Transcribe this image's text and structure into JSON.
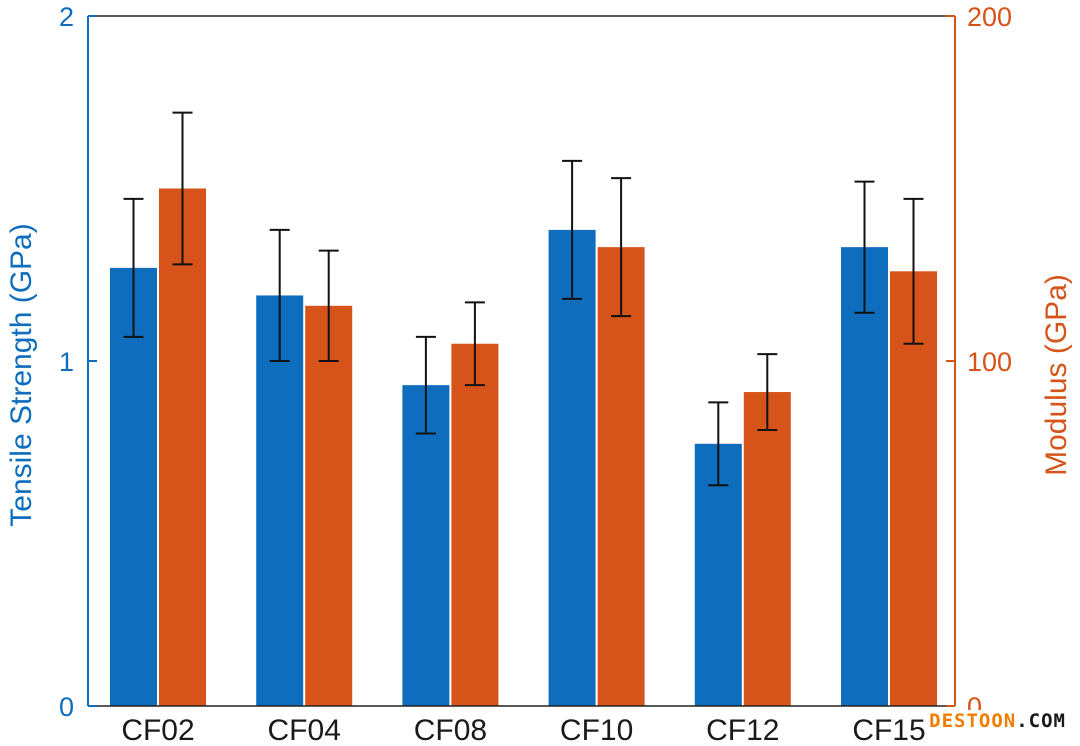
{
  "chart_data": {
    "type": "bar",
    "categories": [
      "CF02",
      "CF04",
      "CF08",
      "CF10",
      "CF12",
      "CF15"
    ],
    "series": [
      {
        "name": "Tensile Strength",
        "axis": "left",
        "color": "#0e6dbd",
        "values": [
          1.27,
          1.19,
          0.93,
          1.38,
          0.76,
          1.33
        ],
        "error": [
          0.2,
          0.19,
          0.14,
          0.2,
          0.12,
          0.19
        ]
      },
      {
        "name": "Modulus",
        "axis": "right",
        "color": "#d65319",
        "values": [
          150,
          116,
          105,
          133,
          91,
          126
        ],
        "error": [
          22,
          16,
          12,
          20,
          11,
          21
        ]
      }
    ],
    "ylabel": "Tensile Strength (GPa)",
    "ylim": [
      0,
      2
    ],
    "yticks": [
      "0",
      "1",
      "2"
    ],
    "y2label": "Modulus (GPa)",
    "y2lim": [
      0,
      200
    ],
    "y2ticks": [
      "0",
      "100",
      "200"
    ],
    "left_axis_color": "#0e6dbd",
    "right_axis_color": "#d65319",
    "grid": false
  },
  "watermark": {
    "main": "DESTOON",
    "suffix": ".COM"
  }
}
